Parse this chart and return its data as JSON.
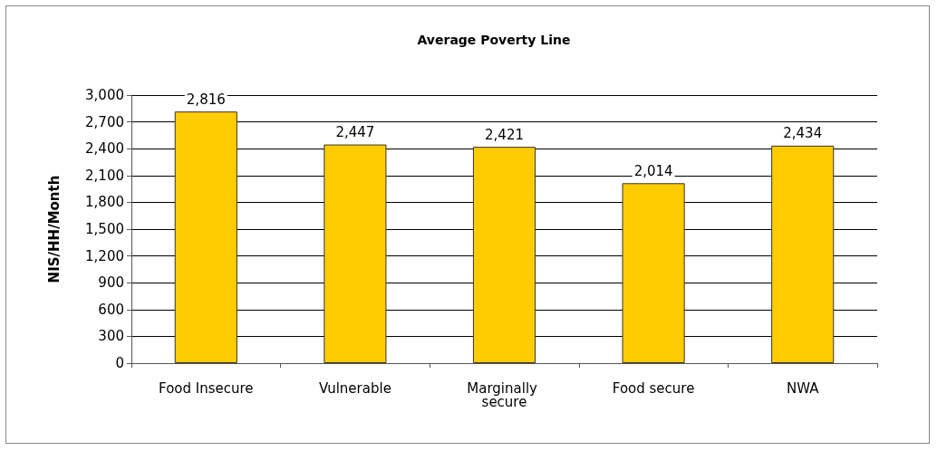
{
  "chart_data": {
    "type": "bar",
    "title": "Average Poverty Line",
    "ylabel": "NIS/HH/Month",
    "categories": [
      "Food Insecure",
      "Vulnerable",
      "Marginally secure",
      "Food secure",
      "NWA"
    ],
    "values": [
      2816,
      2447,
      2421,
      2014,
      2434
    ],
    "color": "#ffcc00",
    "value_labels": [
      "2,816",
      "2,447",
      "2,421",
      "2,014",
      "2,434"
    ],
    "ylim": [
      0,
      3000
    ],
    "yticks": [
      0,
      300,
      600,
      900,
      {
        "value": 1200,
        "label": "1,200"
      },
      {
        "value": 1500,
        "label": "1,500"
      },
      {
        "value": 1800,
        "label": "1,800"
      },
      {
        "value": 2100,
        "label": "2,100"
      },
      {
        "value": 2400,
        "label": "2,400"
      },
      {
        "value": 2700,
        "label": "2,700"
      },
      {
        "value": 3000,
        "label": "3,000"
      }
    ],
    "grid": "y"
  }
}
